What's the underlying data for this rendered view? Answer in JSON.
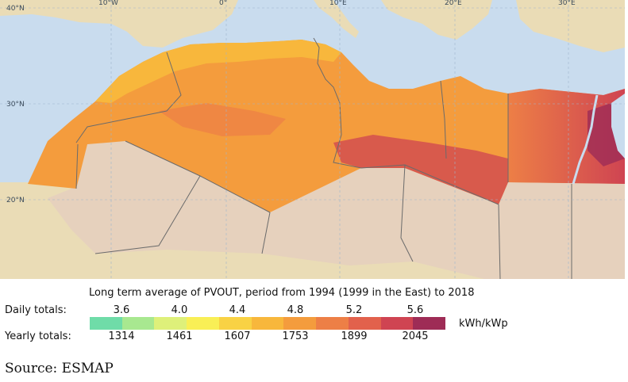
{
  "map": {
    "lat_labels": [
      "40°N",
      "30°N",
      "20°N"
    ],
    "lon_labels": [
      "10°W",
      "0°",
      "10°E",
      "20°E",
      "30°E"
    ]
  },
  "legend": {
    "title": "Long term average of PVOUT, period from 1994 (1999 in the East) to 2018",
    "daily_label": "Daily totals:",
    "yearly_label": "Yearly totals:",
    "unit": "kWh/kWp",
    "daily_ticks": [
      "3.6",
      "4.0",
      "4.4",
      "4.8",
      "5.2",
      "5.6"
    ],
    "yearly_ticks": [
      "1314",
      "1461",
      "1607",
      "1753",
      "1899",
      "2045"
    ],
    "colors": [
      "#6fdca8",
      "#a8e890",
      "#def07a",
      "#f9ef56",
      "#f9d244",
      "#f8b73c",
      "#f49c3d",
      "#ed7f46",
      "#e2614c",
      "#cf4452",
      "#9e2c56"
    ]
  },
  "colors": {
    "sea": "#c9dcee",
    "land_outside": "#eadcb6",
    "land_muted": "#e6d1bd",
    "border": "#6b6b6b"
  },
  "source": "Source: ESMAP"
}
